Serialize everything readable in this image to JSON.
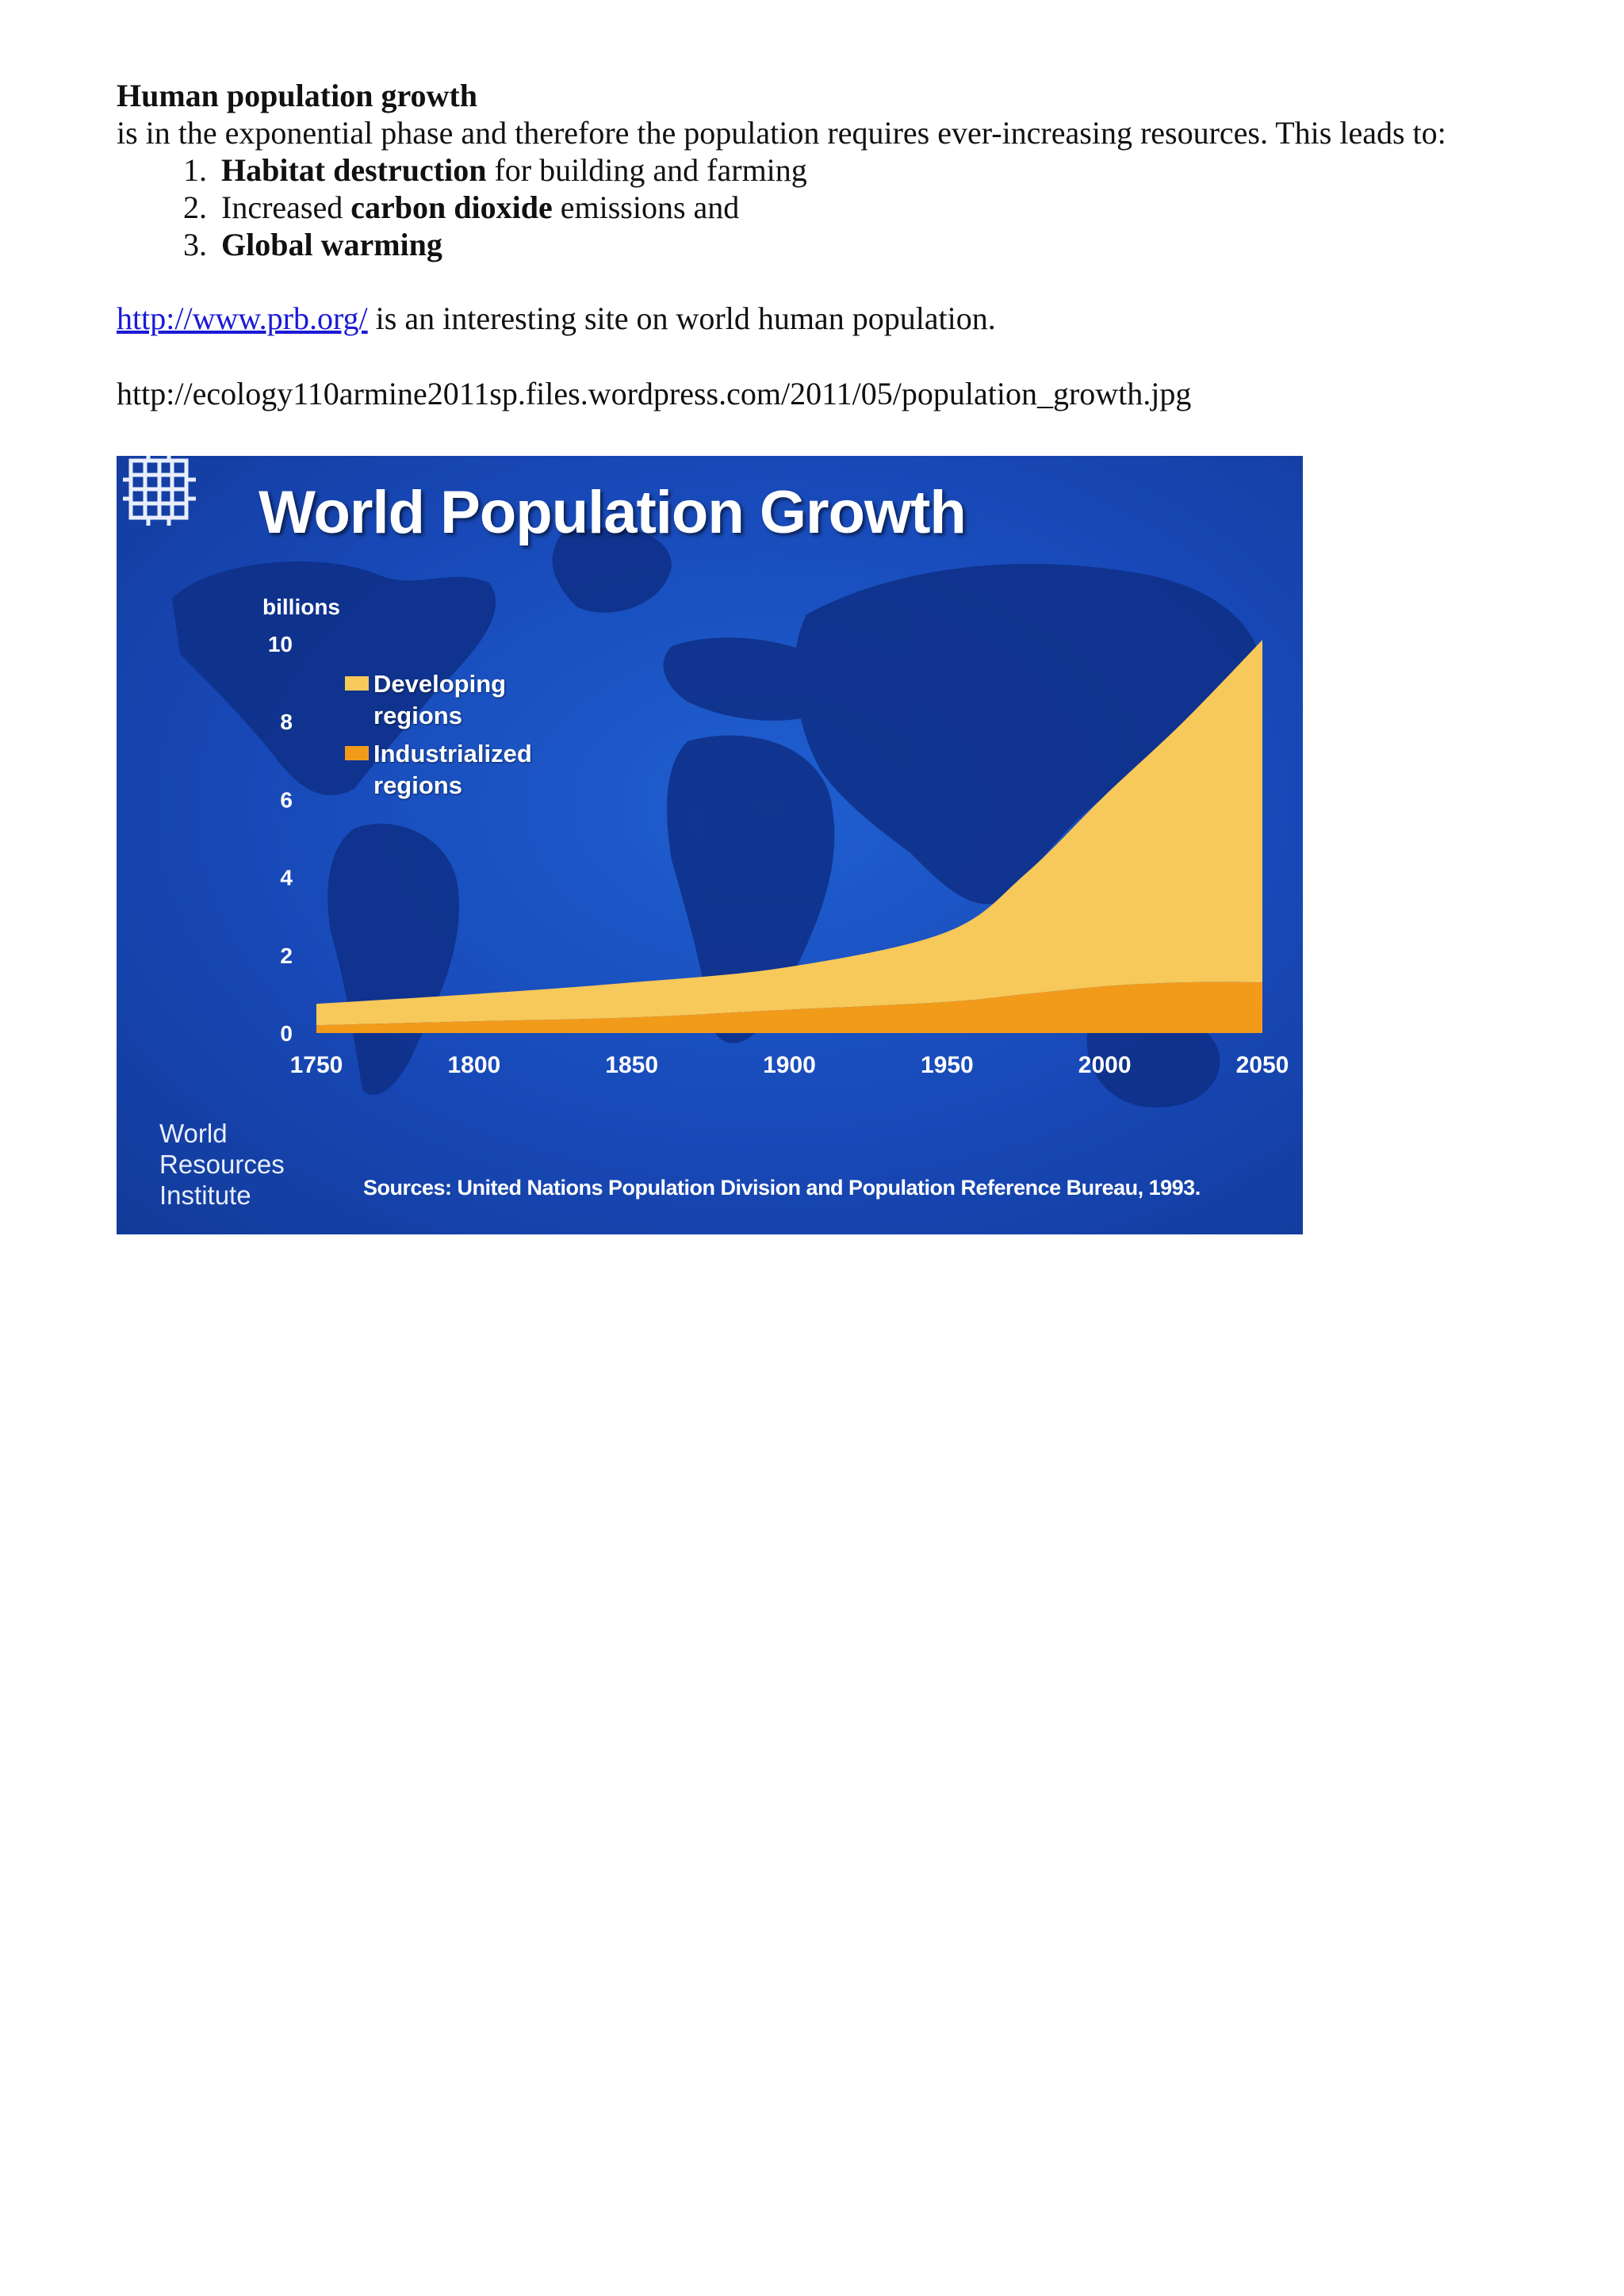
{
  "document": {
    "heading": "Human population growth",
    "intro": "is in the exponential phase and therefore the population requires ever-increasing resources. This leads to:",
    "leads": [
      {
        "bold": "Habitat destruction",
        "before": "",
        "after": " for building and farming"
      },
      {
        "bold": "carbon dioxide",
        "before": "Increased ",
        "after": " emissions and"
      },
      {
        "bold": "Global warming",
        "before": "",
        "after": ""
      }
    ],
    "link_text": "http://www.prb.org/",
    "link_suffix": " is an interesting site on world human population.",
    "image_source_url": "http://ecology110armine2011sp.files.wordpress.com/2011/05/population_growth.jpg"
  },
  "figure": {
    "background_color": "#1849b8",
    "logo_icon": "wri-knot-logo-icon",
    "organization_lines": [
      "World",
      "Resources",
      "Institute"
    ],
    "source_note": "Sources: United Nations Population Division and Population Reference Bureau, 1993."
  },
  "chart_data": {
    "type": "area",
    "stacked": true,
    "title": "World Population Growth",
    "ylabel": "billions",
    "xlabel": "",
    "x": [
      1750,
      1800,
      1850,
      1900,
      1950,
      1975,
      2000,
      2025,
      2050
    ],
    "xticks": [
      "1750",
      "1800",
      "1850",
      "1900",
      "1950",
      "2000",
      "2050"
    ],
    "yticks": [
      "0",
      "2",
      "4",
      "6",
      "8",
      "10"
    ],
    "xlim": [
      1750,
      2050
    ],
    "ylim": [
      0,
      10
    ],
    "grid": false,
    "legend_position": "top-left",
    "series": [
      {
        "name": "Industrialized regions",
        "color": "#f29b1b",
        "values": [
          0.2,
          0.3,
          0.4,
          0.6,
          0.8,
          1.0,
          1.2,
          1.3,
          1.3
        ]
      },
      {
        "name": "Developing regions",
        "color": "#f7c85a",
        "values": [
          0.55,
          0.7,
          0.9,
          1.1,
          1.8,
          3.1,
          4.9,
          6.7,
          8.8
        ]
      }
    ]
  }
}
